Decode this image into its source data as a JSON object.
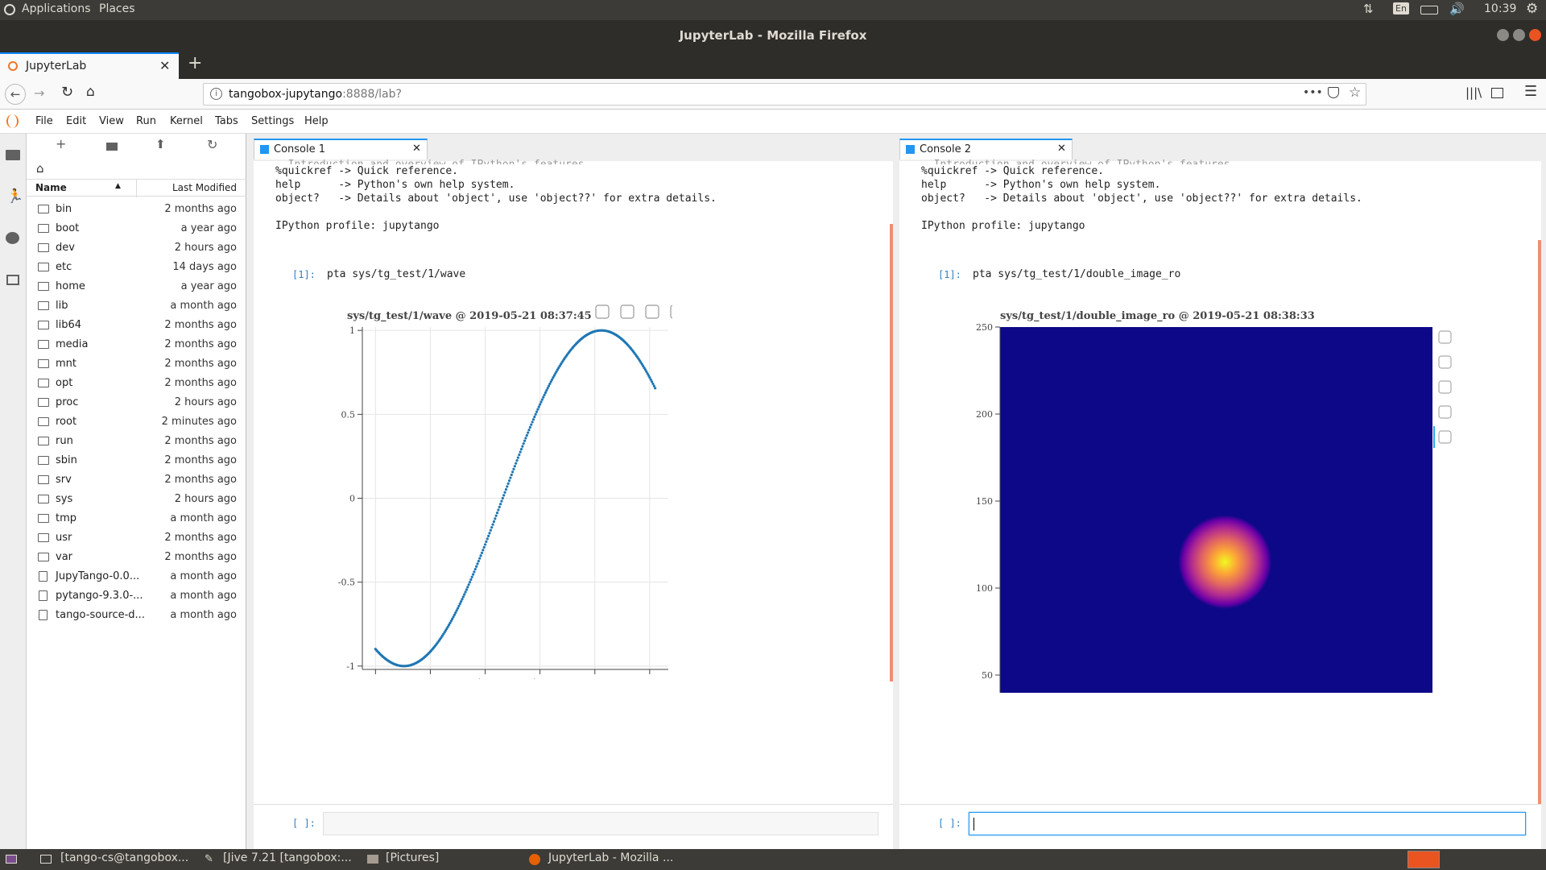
{
  "system_bar": {
    "applications": "Applications",
    "places": "Places",
    "keyboard": "En",
    "clock": "10:39"
  },
  "window_title": "JupyterLab - Mozilla Firefox",
  "browser": {
    "tab_title": "JupyterLab",
    "url_host": "tangobox-jupytango",
    "url_rest": ":8888/lab?"
  },
  "menu": [
    "File",
    "Edit",
    "View",
    "Run",
    "Kernel",
    "Tabs",
    "Settings",
    "Help"
  ],
  "filebrowser": {
    "col_name": "Name",
    "col_modified": "Last Modified",
    "items": [
      {
        "name": "bin",
        "modified": "2 months ago",
        "type": "folder"
      },
      {
        "name": "boot",
        "modified": "a year ago",
        "type": "folder"
      },
      {
        "name": "dev",
        "modified": "2 hours ago",
        "type": "folder"
      },
      {
        "name": "etc",
        "modified": "14 days ago",
        "type": "folder"
      },
      {
        "name": "home",
        "modified": "a year ago",
        "type": "folder"
      },
      {
        "name": "lib",
        "modified": "a month ago",
        "type": "folder"
      },
      {
        "name": "lib64",
        "modified": "2 months ago",
        "type": "folder"
      },
      {
        "name": "media",
        "modified": "2 months ago",
        "type": "folder"
      },
      {
        "name": "mnt",
        "modified": "2 months ago",
        "type": "folder"
      },
      {
        "name": "opt",
        "modified": "2 months ago",
        "type": "folder"
      },
      {
        "name": "proc",
        "modified": "2 hours ago",
        "type": "folder"
      },
      {
        "name": "root",
        "modified": "2 minutes ago",
        "type": "folder"
      },
      {
        "name": "run",
        "modified": "2 months ago",
        "type": "folder"
      },
      {
        "name": "sbin",
        "modified": "2 months ago",
        "type": "folder"
      },
      {
        "name": "srv",
        "modified": "2 months ago",
        "type": "folder"
      },
      {
        "name": "sys",
        "modified": "2 hours ago",
        "type": "folder"
      },
      {
        "name": "tmp",
        "modified": "a month ago",
        "type": "folder"
      },
      {
        "name": "usr",
        "modified": "2 months ago",
        "type": "folder"
      },
      {
        "name": "var",
        "modified": "2 months ago",
        "type": "folder"
      },
      {
        "name": "JupyTango-0.0...",
        "modified": "a month ago",
        "type": "file"
      },
      {
        "name": "pytango-9.3.0-...",
        "modified": "a month ago",
        "type": "file"
      },
      {
        "name": "tango-source-d...",
        "modified": "a month ago",
        "type": "file"
      }
    ]
  },
  "console1": {
    "tab": "Console 1",
    "lines": [
      "%quickref -> Quick reference.",
      "help      -> Python's own help system.",
      "object?   -> Details about 'object', use 'object??' for extra details.",
      "",
      "IPython profile: jupytango"
    ],
    "prompt": "[1]:",
    "cmd": "pta sys/tg_test/1/wave",
    "input_prompt": "[ ]:"
  },
  "console2": {
    "tab": "Console 2",
    "lines": [
      "%quickref -> Quick reference.",
      "help      -> Python's own help system.",
      "object?   -> Details about 'object', use 'object??' for extra details.",
      "",
      "IPython profile: jupytango"
    ],
    "prompt": "[1]:",
    "cmd": "pta sys/tg_test/1/double_image_ro",
    "input_prompt": "[ ]:"
  },
  "chart_data": [
    {
      "type": "scatter",
      "title": "sys/tg_test/1/wave @ 2019-05-21 08:37:45",
      "xlim": [
        -12,
        267
      ],
      "ylim": [
        -1.02,
        1.02
      ],
      "xticks": [
        0,
        50,
        100,
        150,
        200,
        250
      ],
      "yticks": [
        {
          "v": 1,
          "label": "1"
        },
        {
          "v": 0.5,
          "label": "0.5"
        },
        {
          "v": 0,
          "label": "0"
        },
        {
          "v": -0.5,
          "label": "-0.5"
        },
        {
          "v": -1,
          "label": "-1"
        }
      ],
      "series": [
        {
          "x_start": 0,
          "x_end": 255,
          "n_points": 256,
          "function": "y = -sin((x + 64) * 2*pi / 360) approx",
          "color": "#1f77b4"
        }
      ],
      "grid": true
    },
    {
      "type": "heatmap",
      "title": "sys/tg_test/1/double_image_ro @ 2019-05-21 08:38:33",
      "xlim": [
        0,
        250
      ],
      "ylim": [
        0,
        250
      ],
      "xticks": [
        0,
        50,
        100,
        150,
        200,
        250
      ],
      "yticks": [
        0,
        50,
        100,
        150,
        200,
        250
      ],
      "background": "#0d0887",
      "hotspot": {
        "x": 130,
        "y": 115,
        "radius": 27
      },
      "colormap": "plasma"
    }
  ],
  "taskbar": [
    "[tango-cs@tangobox...",
    "[Jive 7.21 [tangobox:...",
    "[Pictures]",
    "JupyterLab - Mozilla ..."
  ]
}
